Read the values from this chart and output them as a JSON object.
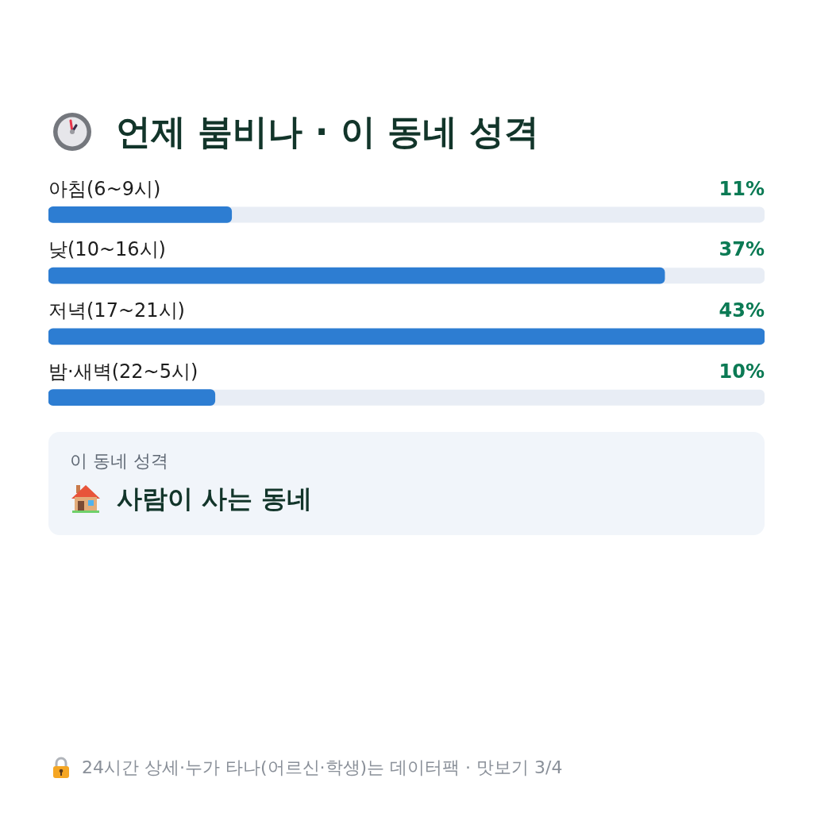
{
  "chart_data": {
    "type": "bar",
    "orientation": "horizontal",
    "title": "언제 붐비나 · 이 동네 성격",
    "categories": [
      "아침(6~9시)",
      "낮(10~16시)",
      "저녁(17~21시)",
      "밤·새벽(22~5시)"
    ],
    "values": [
      11,
      37,
      43,
      10
    ],
    "color": "#2d7dd2",
    "value_labels": [
      "11%",
      "37%",
      "43%",
      "10%"
    ],
    "annotations": [
      "이 동네 성격",
      "사람이 사는 동네",
      "24시간 상세·누가 타나(어르신·학생)는 데이터팩 · 맛보기 3/4"
    ]
  }
}
